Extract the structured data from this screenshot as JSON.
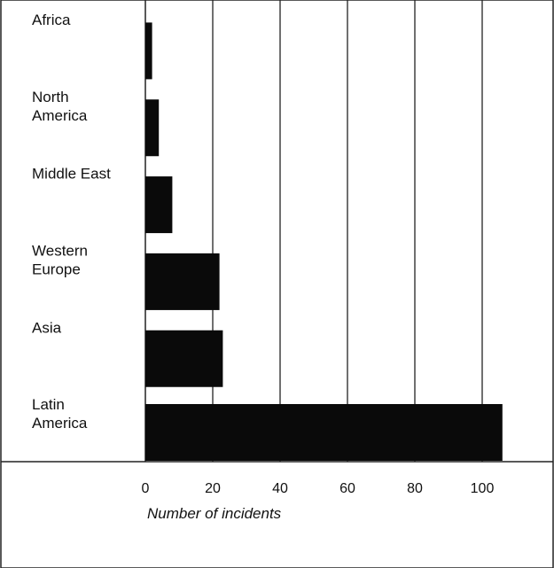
{
  "chart_data": {
    "type": "bar",
    "orientation": "horizontal",
    "categories": [
      "Africa",
      "North America",
      "Middle East",
      "Western Europe",
      "Asia",
      "Latin America"
    ],
    "category_lines": [
      [
        "Africa"
      ],
      [
        "North",
        "America"
      ],
      [
        "Middle East"
      ],
      [
        "Western",
        "Europe"
      ],
      [
        "Asia"
      ],
      [
        "Latin",
        "America"
      ]
    ],
    "values": [
      2,
      4,
      8,
      22,
      23,
      106
    ],
    "xlabel": "Number of incidents",
    "ylabel": "",
    "xlim": [
      0,
      120
    ],
    "x_ticks": [
      0,
      20,
      40,
      60,
      80,
      100
    ],
    "grid": "vertical",
    "legend": "none",
    "bar_color": "#0a0a0a"
  }
}
